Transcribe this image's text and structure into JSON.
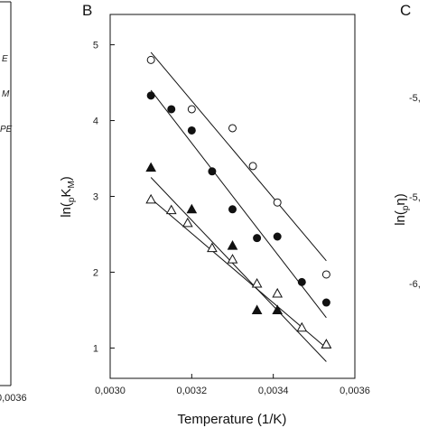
{
  "panels": {
    "left_letter": "B",
    "right_letter": "C"
  },
  "fragments": {
    "left_x_tick": "0,0036",
    "left_legend": [
      "E",
      "M",
      "PE"
    ],
    "right_y_ticks": [
      "-5,",
      "-5,",
      "-6,"
    ],
    "right_y_label": "ln(pη)"
  },
  "chart_data": {
    "type": "scatter",
    "title": "",
    "xlabel": "Temperature (1/K)",
    "ylabel": "ln(pKM)",
    "xlim": [
      0.003,
      0.0036
    ],
    "ylim": [
      0.6,
      5.4
    ],
    "x_ticks": [
      {
        "value": 0.003,
        "label": "0,0030"
      },
      {
        "value": 0.0032,
        "label": "0,0032"
      },
      {
        "value": 0.0034,
        "label": "0,0034"
      },
      {
        "value": 0.0036,
        "label": "0,0036"
      }
    ],
    "y_ticks": [
      {
        "value": 1,
        "label": "1"
      },
      {
        "value": 2,
        "label": "2"
      },
      {
        "value": 3,
        "label": "3"
      },
      {
        "value": 4,
        "label": "4"
      },
      {
        "value": 5,
        "label": "5"
      }
    ],
    "grid": false,
    "series": [
      {
        "marker": "open-circle",
        "points": [
          [
            0.0031,
            4.8
          ],
          [
            0.0032,
            4.15
          ],
          [
            0.0033,
            3.9
          ],
          [
            0.00335,
            3.4
          ],
          [
            0.00341,
            2.92
          ],
          [
            0.00353,
            1.97
          ]
        ],
        "fit": [
          [
            0.0031,
            4.9
          ],
          [
            0.00353,
            2.15
          ]
        ]
      },
      {
        "marker": "filled-circle",
        "points": [
          [
            0.0031,
            4.33
          ],
          [
            0.00315,
            4.15
          ],
          [
            0.0032,
            3.87
          ],
          [
            0.00325,
            3.33
          ],
          [
            0.0033,
            2.83
          ],
          [
            0.00336,
            2.45
          ],
          [
            0.00341,
            2.47
          ],
          [
            0.00347,
            1.87
          ],
          [
            0.00353,
            1.6
          ]
        ],
        "fit": [
          [
            0.0031,
            4.4
          ],
          [
            0.00353,
            1.4
          ]
        ]
      },
      {
        "marker": "filled-triangle",
        "points": [
          [
            0.0031,
            3.38
          ],
          [
            0.0032,
            2.83
          ],
          [
            0.0033,
            2.35
          ],
          [
            0.00336,
            1.5
          ],
          [
            0.00341,
            1.5
          ],
          [
            0.00353,
            1.05
          ]
        ],
        "fit": [
          [
            0.0031,
            3.25
          ],
          [
            0.00353,
            0.82
          ]
        ]
      },
      {
        "marker": "open-triangle",
        "points": [
          [
            0.0031,
            2.96
          ],
          [
            0.00315,
            2.82
          ],
          [
            0.00319,
            2.65
          ],
          [
            0.00325,
            2.32
          ],
          [
            0.0033,
            2.17
          ],
          [
            0.00336,
            1.85
          ],
          [
            0.00341,
            1.72
          ],
          [
            0.00347,
            1.27
          ],
          [
            0.00353,
            1.05
          ]
        ],
        "fit": [
          [
            0.0031,
            2.97
          ],
          [
            0.00353,
            1.0
          ]
        ]
      }
    ]
  }
}
